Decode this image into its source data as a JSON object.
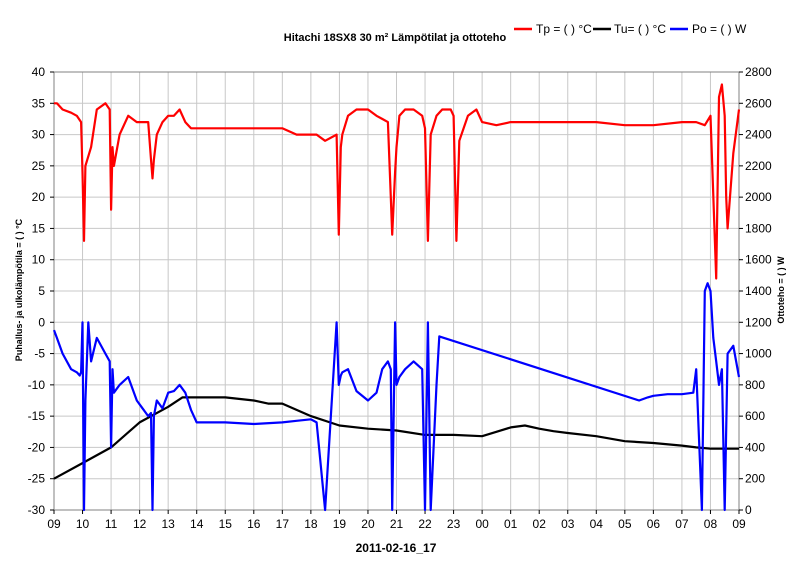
{
  "chart_data": {
    "type": "line",
    "title": "Hitachi 18SX8 30 m² Lämpötilat ja ottoteho",
    "xlabel": "2011-02-16_17",
    "ylabel_left": "Puhallus- ja ulkolämpötila = ( ) °C",
    "ylabel_right": "Ottoteho = ( ) W",
    "ylim_left": [
      -30,
      40
    ],
    "ylim_right": [
      0,
      2800
    ],
    "left_ticks": [
      "-30",
      "-25",
      "-20",
      "-15",
      "-10",
      "-5",
      "0",
      "5",
      "10",
      "15",
      "20",
      "25",
      "30",
      "35",
      "40"
    ],
    "right_ticks": [
      "0",
      "200",
      "400",
      "600",
      "800",
      "1000",
      "1200",
      "1400",
      "1600",
      "1800",
      "2000",
      "2200",
      "2400",
      "2600",
      "2800"
    ],
    "x_ticks": [
      "09",
      "10",
      "11",
      "12",
      "13",
      "14",
      "15",
      "16",
      "17",
      "18",
      "19",
      "20",
      "21",
      "22",
      "23",
      "00",
      "01",
      "02",
      "03",
      "04",
      "05",
      "06",
      "07",
      "08",
      "09"
    ],
    "xlim_hours": [
      0,
      24
    ],
    "grid": true,
    "legend_position": "top-right",
    "series": [
      {
        "name": "Tp = ( ) °C",
        "axis": "left",
        "color": "#ff0000",
        "x": [
          0,
          0.1,
          0.3,
          0.6,
          0.8,
          0.95,
          1.0,
          1.05,
          1.1,
          1.3,
          1.5,
          1.8,
          1.95,
          2.0,
          2.05,
          2.1,
          2.3,
          2.6,
          2.9,
          3.1,
          3.3,
          3.4,
          3.45,
          3.5,
          3.6,
          3.8,
          4.0,
          4.2,
          4.4,
          4.6,
          4.8,
          5.0,
          5.2,
          5.5,
          6,
          7,
          8,
          8.5,
          9,
          9.2,
          9.5,
          9.9,
          9.98,
          10.05,
          10.1,
          10.3,
          10.6,
          11.0,
          11.3,
          11.5,
          11.7,
          11.8,
          11.85,
          11.95,
          12.0,
          12.1,
          12.3,
          12.6,
          12.9,
          13.0,
          13.1,
          13.2,
          13.4,
          13.6,
          13.9,
          14.0,
          14.1,
          14.2,
          14.5,
          14.8,
          15.0,
          15.5,
          16,
          17,
          18,
          19,
          20,
          21,
          22,
          22.5,
          22.8,
          23.0,
          23.2,
          23.3,
          23.4,
          23.5,
          23.55,
          23.6,
          23.8,
          24.0
        ],
        "values": [
          35,
          35,
          34,
          33.5,
          33,
          32,
          24,
          13,
          25,
          28,
          34,
          35,
          34,
          18,
          28,
          25,
          30,
          33,
          32,
          32,
          32,
          26,
          23,
          26,
          30,
          32,
          33,
          33,
          34,
          32,
          31,
          31,
          31,
          31,
          31,
          31,
          31,
          30,
          30,
          30,
          29,
          30,
          14,
          28,
          30,
          33,
          34,
          34,
          33,
          32.5,
          32,
          20,
          14,
          24,
          28,
          33,
          34,
          34,
          33,
          31,
          13,
          30,
          33,
          34,
          34,
          33,
          13,
          29,
          33,
          34,
          32,
          31.5,
          32,
          32,
          32,
          32,
          31.5,
          31.5,
          32,
          32,
          31.5,
          33,
          7,
          36,
          38,
          33,
          20,
          15,
          27,
          34
        ],
        "note_hours_axis": "hours since 09:00"
      },
      {
        "name": "Tu= ( ) °C",
        "axis": "left",
        "color": "#000000",
        "x": [
          0,
          1,
          2,
          3,
          4,
          4.5,
          5,
          6,
          7,
          7.5,
          8,
          9,
          10,
          11,
          12,
          13,
          14,
          15,
          15.5,
          16,
          16.5,
          17,
          17.5,
          18,
          19,
          20,
          21,
          22,
          22.5,
          23,
          23.5,
          24
        ],
        "values": [
          -25,
          -22.5,
          -20,
          -16,
          -13.5,
          -12,
          -12,
          -12,
          -12.5,
          -13,
          -13,
          -15,
          -16.5,
          -17,
          -17.3,
          -18,
          -18,
          -18.2,
          -17.5,
          -16.8,
          -16.5,
          -17,
          -17.4,
          -17.7,
          -18.2,
          -19,
          -19.3,
          -19.7,
          -20,
          -20.2,
          -20.2,
          -20.2
        ],
        "note_hours_axis": "hours since 09:00"
      },
      {
        "name": "Po = ( ) W",
        "axis": "right",
        "color": "#0000ff",
        "x": [
          0,
          0.1,
          0.3,
          0.6,
          0.8,
          0.9,
          0.95,
          1.0,
          1.05,
          1.1,
          1.2,
          1.3,
          1.5,
          1.8,
          1.95,
          2.0,
          2.05,
          2.1,
          2.3,
          2.6,
          2.9,
          3.1,
          3.3,
          3.4,
          3.45,
          3.5,
          3.6,
          3.8,
          4.0,
          4.2,
          4.4,
          4.6,
          4.8,
          5.0,
          5.2,
          5.5,
          6,
          7,
          8,
          8.5,
          9,
          9.2,
          9.5,
          9.9,
          9.98,
          10.05,
          10.1,
          10.3,
          10.6,
          11.0,
          11.3,
          11.5,
          11.7,
          11.8,
          11.85,
          11.95,
          12.0,
          12.1,
          12.3,
          12.6,
          12.9,
          13.0,
          13.1,
          13.2,
          13.4,
          13.5,
          20.5,
          20.8,
          21.0,
          21.5,
          22,
          22.4,
          22.5,
          22.7,
          22.8,
          22.9,
          23.0,
          23.1,
          23.2,
          23.3,
          23.4,
          23.5,
          23.6,
          23.8,
          24.0
        ],
        "values": [
          1150,
          1100,
          1000,
          900,
          880,
          860,
          880,
          1200,
          0,
          700,
          1200,
          950,
          1100,
          1000,
          950,
          400,
          900,
          750,
          800,
          850,
          700,
          650,
          600,
          620,
          0,
          600,
          700,
          650,
          750,
          760,
          800,
          750,
          640,
          560,
          560,
          560,
          560,
          550,
          560,
          570,
          580,
          560,
          0,
          1200,
          800,
          860,
          880,
          900,
          760,
          700,
          750,
          900,
          950,
          900,
          0,
          1200,
          800,
          850,
          900,
          950,
          900,
          0,
          1200,
          0,
          800,
          1110,
          700,
          720,
          730,
          740,
          740,
          750,
          900,
          0,
          1400,
          1450,
          1400,
          1100,
          950,
          800,
          900,
          0,
          1000,
          1050,
          850
        ],
        "note_hours_axis": "hours since 09:00"
      }
    ]
  }
}
